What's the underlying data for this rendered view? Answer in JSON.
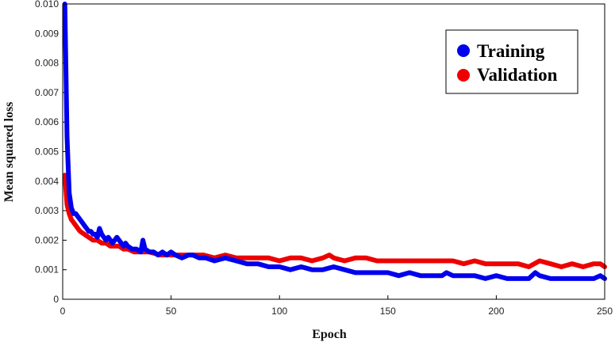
{
  "chart_data": {
    "type": "line",
    "xlabel": "Epoch",
    "ylabel": "Mean squared loss",
    "xlim": [
      0,
      250
    ],
    "ylim": [
      0,
      0.01
    ],
    "xticks": [
      "0",
      "50",
      "100",
      "150",
      "200",
      "250"
    ],
    "yticks": [
      "0",
      "0.001",
      "0.002",
      "0.003",
      "0.004",
      "0.005",
      "0.006",
      "0.007",
      "0.008",
      "0.009",
      "0.010"
    ],
    "grid": false,
    "legend_position": "top-right",
    "series": [
      {
        "name": "Training",
        "color": "#0000ee",
        "x": [
          1,
          2,
          3,
          4,
          5,
          6,
          7,
          8,
          9,
          10,
          11,
          12,
          13,
          14,
          15,
          16,
          17,
          18,
          19,
          20,
          21,
          22,
          23,
          24,
          25,
          26,
          27,
          28,
          29,
          30,
          32,
          34,
          36,
          37,
          38,
          40,
          42,
          44,
          46,
          48,
          50,
          52,
          55,
          58,
          60,
          63,
          66,
          70,
          75,
          80,
          85,
          90,
          95,
          100,
          105,
          110,
          115,
          120,
          125,
          130,
          135,
          140,
          145,
          150,
          155,
          160,
          165,
          170,
          175,
          177,
          180,
          185,
          190,
          195,
          200,
          205,
          210,
          215,
          218,
          220,
          225,
          230,
          235,
          240,
          245,
          248,
          250
        ],
        "y": [
          0.01,
          0.0055,
          0.0036,
          0.0031,
          0.0029,
          0.0029,
          0.0028,
          0.0027,
          0.0026,
          0.0025,
          0.0024,
          0.0023,
          0.0023,
          0.0022,
          0.0022,
          0.0021,
          0.0024,
          0.0022,
          0.0021,
          0.002,
          0.0021,
          0.002,
          0.0019,
          0.002,
          0.0021,
          0.002,
          0.0019,
          0.0018,
          0.0019,
          0.0018,
          0.0017,
          0.0017,
          0.0016,
          0.002,
          0.0017,
          0.0016,
          0.0016,
          0.0015,
          0.0016,
          0.0015,
          0.0016,
          0.0015,
          0.0014,
          0.0015,
          0.0015,
          0.0014,
          0.0014,
          0.0013,
          0.0014,
          0.0013,
          0.0012,
          0.0012,
          0.0011,
          0.0011,
          0.001,
          0.0011,
          0.001,
          0.001,
          0.0011,
          0.001,
          0.0009,
          0.0009,
          0.0009,
          0.0009,
          0.0008,
          0.0009,
          0.0008,
          0.0008,
          0.0008,
          0.0009,
          0.0008,
          0.0008,
          0.0008,
          0.0007,
          0.0008,
          0.0007,
          0.0007,
          0.0007,
          0.0009,
          0.0008,
          0.0007,
          0.0007,
          0.0007,
          0.0007,
          0.0007,
          0.0008,
          0.0007
        ]
      },
      {
        "name": "Validation",
        "color": "#ee0000",
        "x": [
          1,
          2,
          3,
          4,
          5,
          6,
          7,
          8,
          10,
          12,
          14,
          16,
          18,
          20,
          22,
          24,
          26,
          28,
          30,
          33,
          36,
          40,
          45,
          50,
          55,
          60,
          65,
          70,
          75,
          80,
          85,
          90,
          95,
          100,
          105,
          110,
          115,
          120,
          123,
          125,
          130,
          135,
          140,
          145,
          150,
          155,
          160,
          165,
          170,
          175,
          180,
          185,
          190,
          195,
          200,
          205,
          210,
          215,
          220,
          225,
          230,
          235,
          240,
          245,
          248,
          250
        ],
        "y": [
          0.0042,
          0.0032,
          0.0029,
          0.0027,
          0.0026,
          0.0025,
          0.0024,
          0.0023,
          0.0022,
          0.0021,
          0.002,
          0.002,
          0.0019,
          0.0019,
          0.0018,
          0.0018,
          0.0018,
          0.0017,
          0.0017,
          0.0016,
          0.0016,
          0.0016,
          0.0015,
          0.0015,
          0.0015,
          0.0015,
          0.0015,
          0.0014,
          0.0015,
          0.0014,
          0.0014,
          0.0014,
          0.0014,
          0.0013,
          0.0014,
          0.0014,
          0.0013,
          0.0014,
          0.0015,
          0.0014,
          0.0013,
          0.0014,
          0.0014,
          0.0013,
          0.0013,
          0.0013,
          0.0013,
          0.0013,
          0.0013,
          0.0013,
          0.0013,
          0.0012,
          0.0013,
          0.0012,
          0.0012,
          0.0012,
          0.0012,
          0.0011,
          0.0013,
          0.0012,
          0.0011,
          0.0012,
          0.0011,
          0.0012,
          0.0012,
          0.0011
        ]
      }
    ]
  }
}
